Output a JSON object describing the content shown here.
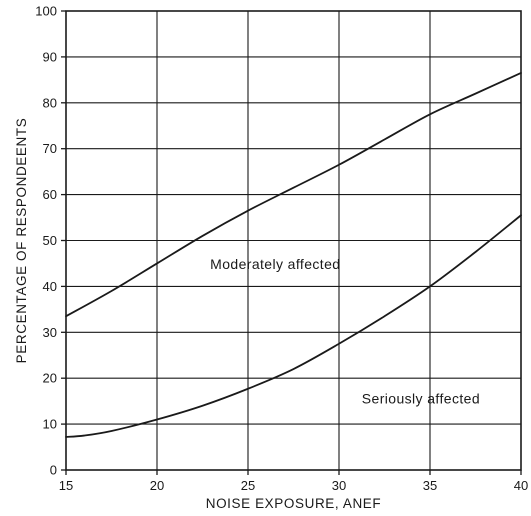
{
  "chart_data": {
    "type": "line",
    "title": "",
    "xlabel": "NOISE EXPOSURE, ANEF",
    "ylabel": "PERCENTAGE OF RESPONDEENTS",
    "xlim": [
      15,
      40
    ],
    "ylim": [
      0,
      100
    ],
    "xticks": [
      15,
      20,
      25,
      30,
      35,
      40
    ],
    "yticks": [
      0,
      10,
      20,
      30,
      40,
      50,
      60,
      70,
      80,
      90,
      100
    ],
    "grid": true,
    "series": [
      {
        "name": "Moderately affected",
        "x": [
          15,
          17.5,
          20,
          22.5,
          25,
          27.5,
          30,
          32.5,
          35,
          37.5,
          40
        ],
        "values": [
          33.5,
          39,
          45,
          51,
          56.5,
          61.5,
          66.5,
          72,
          77.5,
          82,
          86.5
        ]
      },
      {
        "name": "Seriously affected",
        "x": [
          15,
          16,
          17.5,
          20,
          22.5,
          25,
          27.5,
          30,
          32.5,
          35,
          37.5,
          40
        ],
        "values": [
          7.2,
          7.5,
          8.5,
          11,
          14,
          17.7,
          22,
          27.5,
          33.5,
          40,
          47.5,
          55.5
        ]
      }
    ],
    "annotations": [
      {
        "text": "Moderately affected",
        "x": 26.5,
        "y": 43.8
      },
      {
        "text": "Seriously affected",
        "x": 34.5,
        "y": 14.5
      }
    ]
  }
}
